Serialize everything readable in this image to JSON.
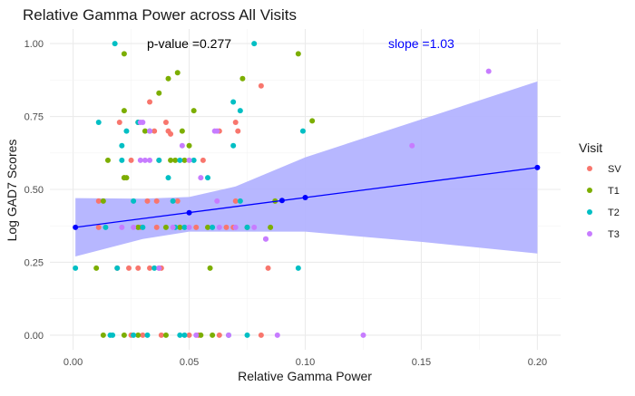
{
  "chart_data": {
    "type": "scatter",
    "title": "Relative Gamma Power across All Visits",
    "xlabel": "Relative Gamma Power",
    "ylabel": "Log GAD7 Scores",
    "xlim": [
      -0.01,
      0.21
    ],
    "ylim": [
      -0.05,
      1.05
    ],
    "x_ticks": [
      0.0,
      0.05,
      0.1,
      0.15,
      0.2
    ],
    "x_tick_labels": [
      "0.00",
      "0.05",
      "0.10",
      "0.15",
      "0.20"
    ],
    "y_ticks": [
      0.0,
      0.25,
      0.5,
      0.75,
      1.0
    ],
    "y_tick_labels": [
      "0.00",
      "0.25",
      "0.50",
      "0.75",
      "1.00"
    ],
    "grid": true,
    "legend": {
      "title": "Visit",
      "position": "right",
      "items": [
        {
          "name": "SV",
          "color": "#F8766D"
        },
        {
          "name": "T1",
          "color": "#7CAE00"
        },
        {
          "name": "T2",
          "color": "#00BFC4"
        },
        {
          "name": "T3",
          "color": "#C77CFF"
        }
      ]
    },
    "annotations": [
      {
        "text": "p-value =0.277",
        "x": 0.05,
        "y": 1.0,
        "color": "#000000"
      },
      {
        "text": "slope =1.03",
        "x": 0.15,
        "y": 1.0,
        "color": "#0000ff"
      }
    ],
    "regression": {
      "color": "#0000ff",
      "ribbon_color": "#b3b3ff",
      "line": [
        [
          0.001,
          0.37
        ],
        [
          0.2,
          0.575
        ]
      ],
      "markers": [
        [
          0.001,
          0.37
        ],
        [
          0.05,
          0.42
        ],
        [
          0.09,
          0.462
        ],
        [
          0.1,
          0.472
        ],
        [
          0.2,
          0.575
        ]
      ],
      "ribbon_upper": [
        [
          0.001,
          0.47
        ],
        [
          0.03,
          0.468
        ],
        [
          0.05,
          0.474
        ],
        [
          0.07,
          0.51
        ],
        [
          0.1,
          0.61
        ],
        [
          0.15,
          0.74
        ],
        [
          0.2,
          0.87
        ]
      ],
      "ribbon_lower": [
        [
          0.001,
          0.27
        ],
        [
          0.03,
          0.33
        ],
        [
          0.05,
          0.355
        ],
        [
          0.07,
          0.355
        ],
        [
          0.1,
          0.355
        ],
        [
          0.15,
          0.32
        ],
        [
          0.2,
          0.28
        ]
      ]
    },
    "series": [
      {
        "name": "SV",
        "color": "#F8766D",
        "points": [
          [
            0.02,
            0.73
          ],
          [
            0.033,
            0.8
          ],
          [
            0.04,
            0.73
          ],
          [
            0.035,
            0.7
          ],
          [
            0.041,
            0.7
          ],
          [
            0.042,
            0.69
          ],
          [
            0.063,
            0.7
          ],
          [
            0.07,
            0.73
          ],
          [
            0.071,
            0.7
          ],
          [
            0.081,
            0.855
          ],
          [
            0.025,
            0.6
          ],
          [
            0.037,
            0.6
          ],
          [
            0.056,
            0.6
          ],
          [
            0.022,
            0.54
          ],
          [
            0.032,
            0.46
          ],
          [
            0.036,
            0.46
          ],
          [
            0.045,
            0.46
          ],
          [
            0.07,
            0.46
          ],
          [
            0.011,
            0.37
          ],
          [
            0.029,
            0.37
          ],
          [
            0.036,
            0.37
          ],
          [
            0.053,
            0.37
          ],
          [
            0.066,
            0.37
          ],
          [
            0.069,
            0.37
          ],
          [
            0.011,
            0.46
          ],
          [
            0.019,
            0.23
          ],
          [
            0.024,
            0.23
          ],
          [
            0.028,
            0.23
          ],
          [
            0.033,
            0.23
          ],
          [
            0.037,
            0.23
          ],
          [
            0.038,
            0.23
          ],
          [
            0.084,
            0.23
          ],
          [
            0.025,
            0.0
          ],
          [
            0.03,
            0.0
          ],
          [
            0.038,
            0.0
          ],
          [
            0.05,
            0.0
          ],
          [
            0.054,
            0.0
          ],
          [
            0.063,
            0.0
          ],
          [
            0.081,
            0.0
          ]
        ]
      },
      {
        "name": "T1",
        "color": "#7CAE00",
        "points": [
          [
            0.022,
            0.965
          ],
          [
            0.045,
            0.9
          ],
          [
            0.041,
            0.88
          ],
          [
            0.073,
            0.88
          ],
          [
            0.037,
            0.83
          ],
          [
            0.022,
            0.77
          ],
          [
            0.052,
            0.77
          ],
          [
            0.028,
            0.73
          ],
          [
            0.103,
            0.735
          ],
          [
            0.031,
            0.7
          ],
          [
            0.047,
            0.7
          ],
          [
            0.097,
            0.965
          ],
          [
            0.015,
            0.6
          ],
          [
            0.042,
            0.6
          ],
          [
            0.044,
            0.6
          ],
          [
            0.048,
            0.6
          ],
          [
            0.022,
            0.54
          ],
          [
            0.023,
            0.54
          ],
          [
            0.05,
            0.65
          ],
          [
            0.013,
            0.46
          ],
          [
            0.087,
            0.46
          ],
          [
            0.028,
            0.37
          ],
          [
            0.046,
            0.37
          ],
          [
            0.04,
            0.37
          ],
          [
            0.058,
            0.37
          ],
          [
            0.075,
            0.37
          ],
          [
            0.085,
            0.37
          ],
          [
            0.01,
            0.23
          ],
          [
            0.059,
            0.23
          ],
          [
            0.013,
            0.0
          ],
          [
            0.022,
            0.0
          ],
          [
            0.028,
            0.0
          ],
          [
            0.04,
            0.0
          ],
          [
            0.055,
            0.0
          ],
          [
            0.06,
            0.0
          ]
        ]
      },
      {
        "name": "T2",
        "color": "#00BFC4",
        "points": [
          [
            0.018,
            1.0
          ],
          [
            0.078,
            1.0
          ],
          [
            0.069,
            0.8
          ],
          [
            0.072,
            0.77
          ],
          [
            0.011,
            0.73
          ],
          [
            0.028,
            0.73
          ],
          [
            0.023,
            0.7
          ],
          [
            0.033,
            0.7
          ],
          [
            0.021,
            0.65
          ],
          [
            0.099,
            0.7
          ],
          [
            0.069,
            0.65
          ],
          [
            0.037,
            0.6
          ],
          [
            0.046,
            0.6
          ],
          [
            0.021,
            0.6
          ],
          [
            0.052,
            0.6
          ],
          [
            0.041,
            0.54
          ],
          [
            0.058,
            0.54
          ],
          [
            0.043,
            0.46
          ],
          [
            0.072,
            0.46
          ],
          [
            0.026,
            0.46
          ],
          [
            0.014,
            0.37
          ],
          [
            0.03,
            0.37
          ],
          [
            0.044,
            0.37
          ],
          [
            0.048,
            0.37
          ],
          [
            0.06,
            0.37
          ],
          [
            0.075,
            0.37
          ],
          [
            0.001,
            0.23
          ],
          [
            0.019,
            0.23
          ],
          [
            0.035,
            0.23
          ],
          [
            0.097,
            0.23
          ],
          [
            0.016,
            0.0
          ],
          [
            0.017,
            0.0
          ],
          [
            0.026,
            0.0
          ],
          [
            0.032,
            0.0
          ],
          [
            0.046,
            0.0
          ],
          [
            0.048,
            0.0
          ],
          [
            0.067,
            0.0
          ],
          [
            0.075,
            0.0
          ]
        ]
      },
      {
        "name": "T3",
        "color": "#C77CFF",
        "points": [
          [
            0.179,
            0.905
          ],
          [
            0.146,
            0.65
          ],
          [
            0.047,
            0.65
          ],
          [
            0.061,
            0.7
          ],
          [
            0.062,
            0.7
          ],
          [
            0.029,
            0.73
          ],
          [
            0.03,
            0.73
          ],
          [
            0.033,
            0.7
          ],
          [
            0.029,
            0.6
          ],
          [
            0.031,
            0.6
          ],
          [
            0.033,
            0.6
          ],
          [
            0.05,
            0.6
          ],
          [
            0.055,
            0.54
          ],
          [
            0.062,
            0.46
          ],
          [
            0.021,
            0.37
          ],
          [
            0.026,
            0.37
          ],
          [
            0.043,
            0.37
          ],
          [
            0.05,
            0.37
          ],
          [
            0.063,
            0.37
          ],
          [
            0.078,
            0.37
          ],
          [
            0.07,
            0.37
          ],
          [
            0.083,
            0.33
          ],
          [
            0.037,
            0.23
          ],
          [
            0.083,
            0.33
          ],
          [
            0.125,
            0.0
          ],
          [
            0.088,
            0.0
          ],
          [
            0.053,
            0.0
          ],
          [
            0.067,
            0.0
          ]
        ]
      }
    ]
  }
}
